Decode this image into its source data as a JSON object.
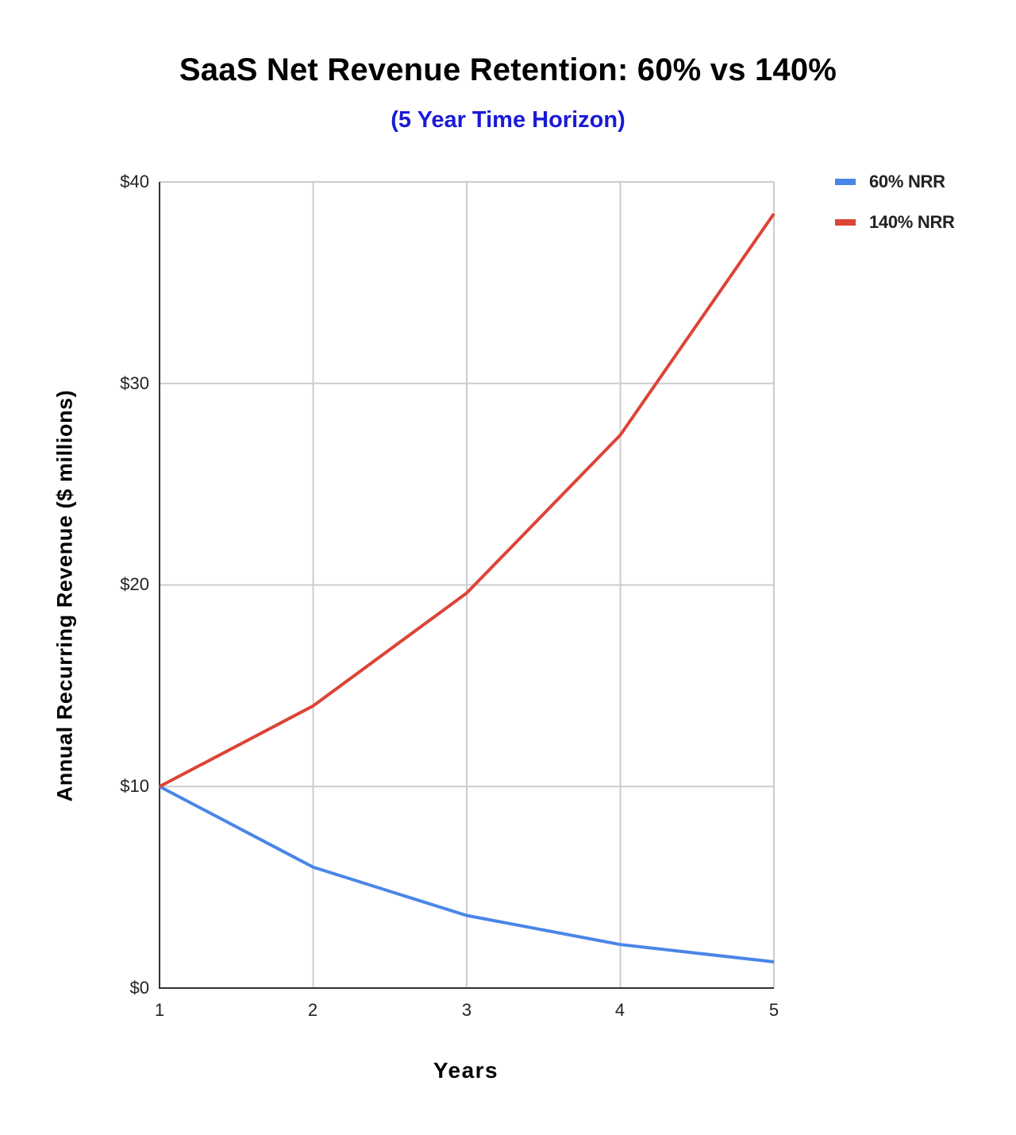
{
  "chart_data": {
    "type": "line",
    "title": "SaaS Net Revenue Retention: 60% vs 140%",
    "subtitle": "(5 Year Time Horizon)",
    "xlabel": "Years",
    "ylabel": "Annual Recurring Revenue ($ millions)",
    "x": [
      1,
      2,
      3,
      4,
      5
    ],
    "x_tick_labels": [
      "1",
      "2",
      "3",
      "4",
      "5"
    ],
    "y_tick_labels": [
      "$0",
      "$10",
      "$20",
      "$30",
      "$40"
    ],
    "y_ticks": [
      0,
      10,
      20,
      30,
      40
    ],
    "ylim": [
      0,
      40
    ],
    "xlim": [
      1,
      5
    ],
    "grid": true,
    "legend_position": "right-top",
    "series": [
      {
        "name": "60% NRR",
        "color": "#4a86e8",
        "values": [
          10,
          6,
          3.6,
          2.16,
          1.3
        ]
      },
      {
        "name": "140% NRR",
        "color": "#dc4437",
        "values": [
          10,
          14,
          19.6,
          27.44,
          38.42
        ]
      }
    ]
  },
  "colors": {
    "subtitle": "#1a1ad6",
    "grid": "#cccccc",
    "axis": "#333333"
  }
}
